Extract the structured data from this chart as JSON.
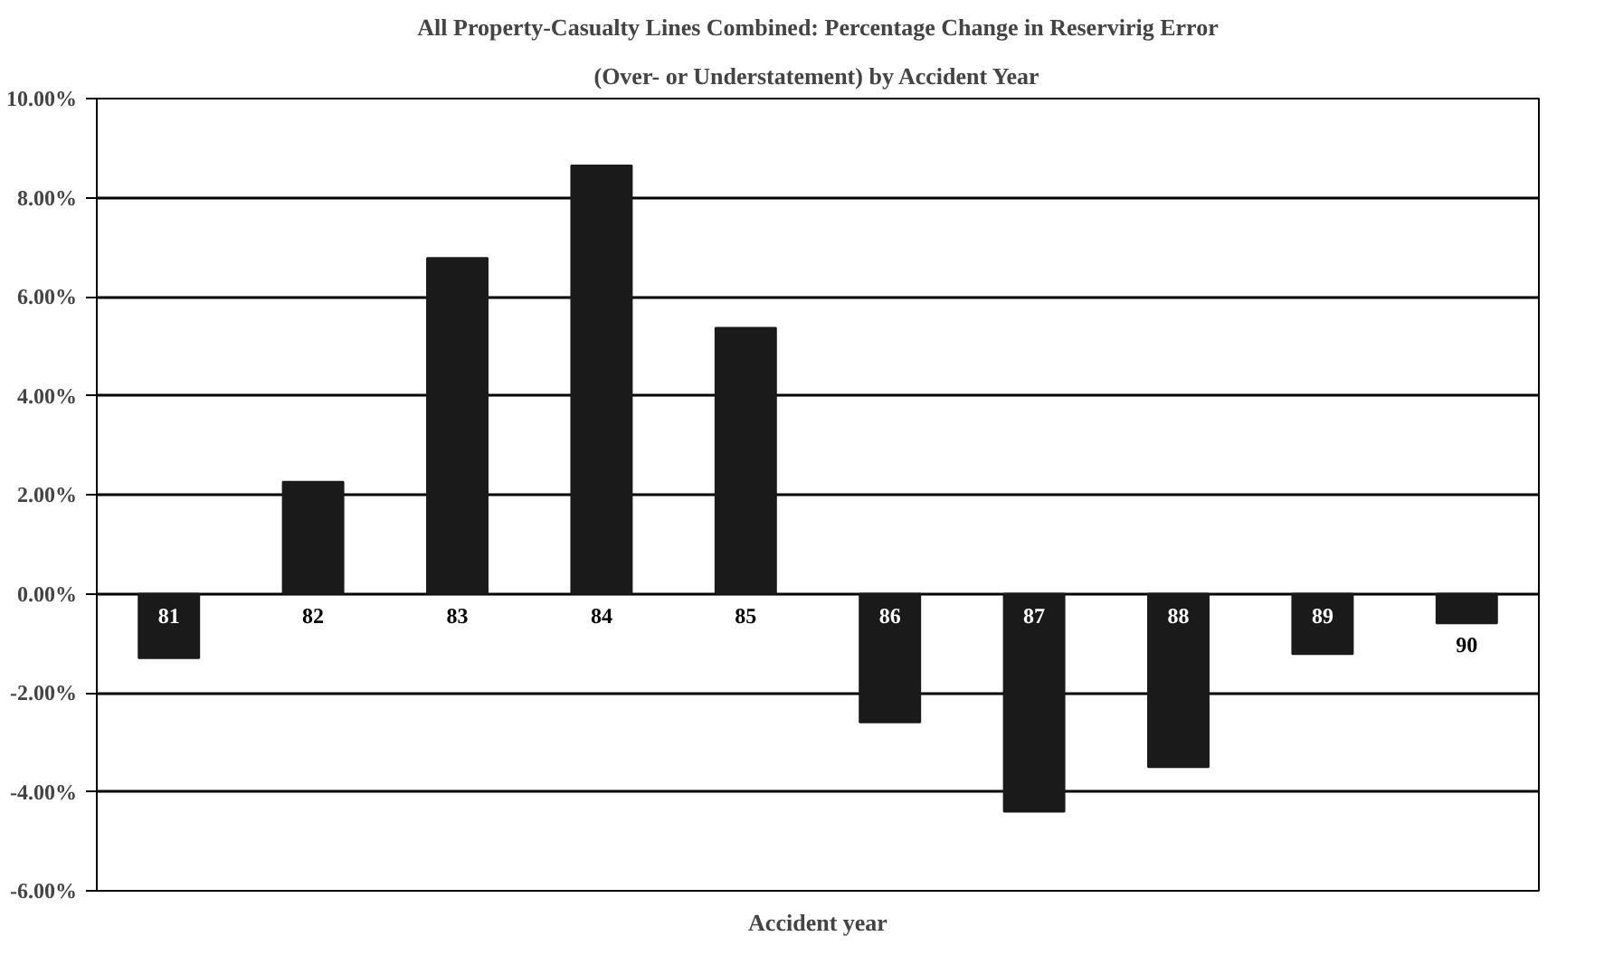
{
  "chart_data": {
    "type": "bar",
    "title": "All Property-Casualty Lines Combined: Percentage Change in Reservirig Error",
    "subtitle": "(Over- or Understatement) by Accident Year",
    "xlabel": "Accident year",
    "categories": [
      "81",
      "82",
      "83",
      "84",
      "85",
      "86",
      "87",
      "88",
      "89",
      "90"
    ],
    "values": [
      -1.3,
      2.26,
      6.78,
      8.65,
      5.37,
      -2.6,
      -4.4,
      -3.5,
      -1.22,
      -0.6
    ],
    "color": "#1a1a1a",
    "ylim": [
      -6,
      10
    ],
    "yticks": [
      {
        "value": -6,
        "label": "-6.00%"
      },
      {
        "value": -4,
        "label": "-4.00%"
      },
      {
        "value": -2,
        "label": "-2.00%"
      },
      {
        "value": 0,
        "label": "0.00%"
      },
      {
        "value": 2,
        "label": "2.00%"
      },
      {
        "value": 4,
        "label": "4.00%"
      },
      {
        "value": 6,
        "label": "6.00%"
      },
      {
        "value": 8,
        "label": "8.00%"
      },
      {
        "value": 10,
        "label": "10.00%"
      }
    ],
    "grid": "y"
  }
}
